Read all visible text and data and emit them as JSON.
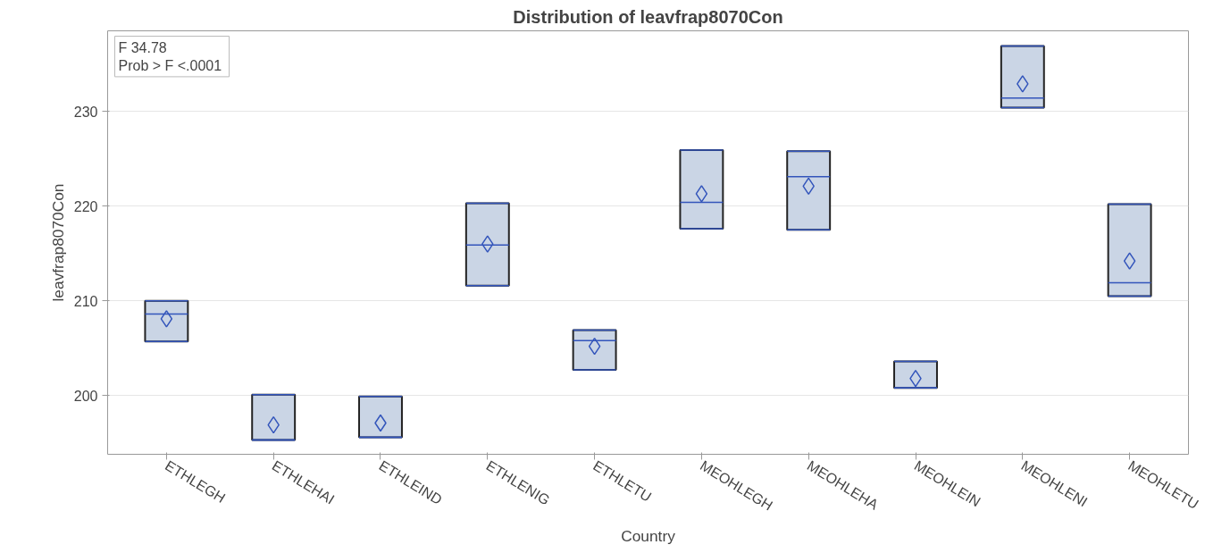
{
  "chart_data": {
    "type": "box",
    "title": "Distribution of leavfrap8070Con",
    "xlabel": "Country",
    "ylabel": "leavfrap8070Con",
    "categories": [
      "ETHLEGH",
      "ETHLEHAI",
      "ETHLEIND",
      "ETHLENIG",
      "ETHLETU",
      "MEOHLEGH",
      "MEOHLEHA",
      "MEOHLEIN",
      "MEOHLENI",
      "MEOHLETU"
    ],
    "boxes": [
      {
        "low": 205.7,
        "q1": 205.7,
        "median": 208.6,
        "q3": 210.0,
        "high": 210.0,
        "mean": 208.1
      },
      {
        "low": 195.3,
        "q1": 195.3,
        "median": 195.3,
        "q3": 200.1,
        "high": 200.1,
        "mean": 196.9
      },
      {
        "low": 195.6,
        "q1": 195.6,
        "median": 195.6,
        "q3": 199.9,
        "high": 199.9,
        "mean": 197.1
      },
      {
        "low": 211.6,
        "q1": 211.6,
        "median": 215.9,
        "q3": 220.3,
        "high": 220.3,
        "mean": 216.0
      },
      {
        "low": 202.7,
        "q1": 202.7,
        "median": 205.8,
        "q3": 206.9,
        "high": 206.9,
        "mean": 205.2
      },
      {
        "low": 217.6,
        "q1": 217.6,
        "median": 220.4,
        "q3": 225.9,
        "high": 225.9,
        "mean": 221.3
      },
      {
        "low": 217.5,
        "q1": 217.5,
        "median": 223.1,
        "q3": 225.8,
        "high": 225.8,
        "mean": 222.1
      },
      {
        "low": 200.8,
        "q1": 200.8,
        "median": 200.8,
        "q3": 203.6,
        "high": 203.6,
        "mean": 201.8
      },
      {
        "low": 230.4,
        "q1": 230.4,
        "median": 231.4,
        "q3": 236.9,
        "high": 236.9,
        "mean": 232.9
      },
      {
        "low": 210.5,
        "q1": 210.5,
        "median": 211.9,
        "q3": 220.2,
        "high": 220.2,
        "mean": 214.2
      }
    ],
    "color": "#cad5e5",
    "ylim": [
      193.8,
      238.5
    ],
    "yticks": [
      200,
      210,
      220,
      230
    ],
    "grid": "y",
    "marker": "diamond",
    "annotations": [
      "F          34.78",
      "Prob > F  <.0001"
    ]
  }
}
